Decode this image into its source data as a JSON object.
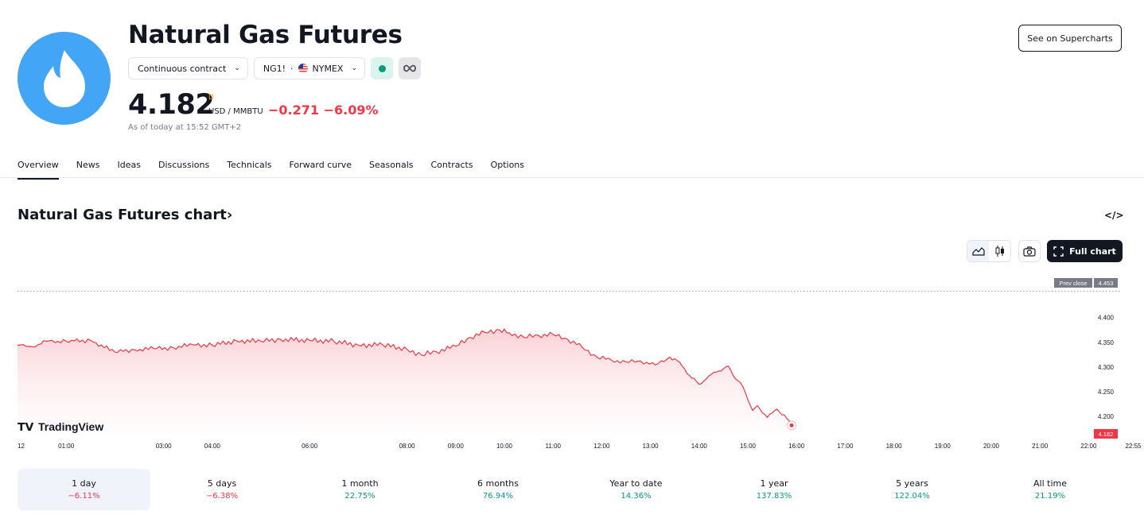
{
  "header": {
    "title": "Natural Gas Futures",
    "contract_label": "Continuous contract",
    "symbol": "NG1!",
    "separator": "·",
    "exchange": "NYMEX",
    "price": "4.182",
    "price_marker": "D",
    "unit": "USD / MMBTU",
    "change": "−0.271 −6.09%",
    "as_of": "As of today at 15:52 GMT+2",
    "supercharts_label": "See on Supercharts"
  },
  "tabs": [
    "Overview",
    "News",
    "Ideas",
    "Discussions",
    "Technicals",
    "Forward curve",
    "Seasonals",
    "Contracts",
    "Options"
  ],
  "section": {
    "title": "Natural Gas Futures chart",
    "title_arrow": "›",
    "embed_icon": "</>",
    "full_chart_label": "Full chart"
  },
  "chart_data": {
    "type": "area",
    "watermark": "TradingView",
    "prev_close_label": "Prev close",
    "prev_close": 4.453,
    "last_value": "4.182",
    "last": 4.182,
    "ylim": [
      4.165,
      4.47
    ],
    "y_ticks": [
      "4.400",
      "4.350",
      "4.300",
      "4.250",
      "4.200"
    ],
    "x_ticks": [
      "12",
      "01:00",
      "03:00",
      "04:00",
      "06:00",
      "08:00",
      "09:00",
      "10:00",
      "11:00",
      "12:00",
      "13:00",
      "14:00",
      "15:00",
      "16:00",
      "17:00",
      "18:00",
      "19:00",
      "20:00",
      "21:00",
      "22:00",
      "22:55"
    ],
    "x_hours": [
      0,
      1,
      3,
      4,
      6,
      8,
      9,
      10,
      11,
      12,
      13,
      14,
      15,
      16,
      17,
      18,
      19,
      20,
      21,
      22,
      22.9167
    ],
    "series": [
      {
        "x": [
          0,
          0.3,
          0.6,
          1.0,
          1.5,
          2.0,
          2.4,
          2.8,
          3.2,
          3.6,
          4.0,
          4.5,
          5.0,
          5.4,
          6.0,
          6.5,
          7.0,
          7.5,
          8.0,
          8.3,
          8.6,
          9.0,
          9.3,
          9.6,
          9.9,
          10.1,
          10.4,
          10.7,
          11.0,
          11.3,
          11.6,
          11.9,
          12.2,
          12.5,
          12.8,
          13.1,
          13.4,
          13.6,
          13.8,
          14.0,
          14.2,
          14.4,
          14.6,
          14.7,
          14.9,
          15.1,
          15.2,
          15.4,
          15.6,
          15.8,
          15.9
        ],
        "y": [
          4.344,
          4.341,
          4.352,
          4.352,
          4.354,
          4.33,
          4.335,
          4.337,
          4.339,
          4.345,
          4.344,
          4.353,
          4.352,
          4.356,
          4.354,
          4.352,
          4.344,
          4.345,
          4.336,
          4.324,
          4.331,
          4.342,
          4.36,
          4.37,
          4.375,
          4.369,
          4.36,
          4.364,
          4.366,
          4.356,
          4.34,
          4.32,
          4.314,
          4.31,
          4.312,
          4.304,
          4.32,
          4.31,
          4.283,
          4.265,
          4.282,
          4.292,
          4.302,
          4.283,
          4.26,
          4.212,
          4.222,
          4.198,
          4.215,
          4.196,
          4.182
        ]
      }
    ],
    "colors": {
      "line": "#f23645",
      "fill_top": "#f9c8cd",
      "prev_close_bg": "#787b86",
      "last_bg": "#f23645"
    }
  },
  "ranges": [
    {
      "label": "1 day",
      "value": "−6.11%",
      "dir": "neg",
      "active": true
    },
    {
      "label": "5 days",
      "value": "−6.38%",
      "dir": "neg",
      "active": false
    },
    {
      "label": "1 month",
      "value": "22.75%",
      "dir": "pos",
      "active": false
    },
    {
      "label": "6 months",
      "value": "76.94%",
      "dir": "pos",
      "active": false
    },
    {
      "label": "Year to date",
      "value": "14.36%",
      "dir": "pos",
      "active": false
    },
    {
      "label": "1 year",
      "value": "137.83%",
      "dir": "pos",
      "active": false
    },
    {
      "label": "5 years",
      "value": "122.04%",
      "dir": "pos",
      "active": false
    },
    {
      "label": "All time",
      "value": "21.19%",
      "dir": "pos",
      "active": false
    }
  ]
}
